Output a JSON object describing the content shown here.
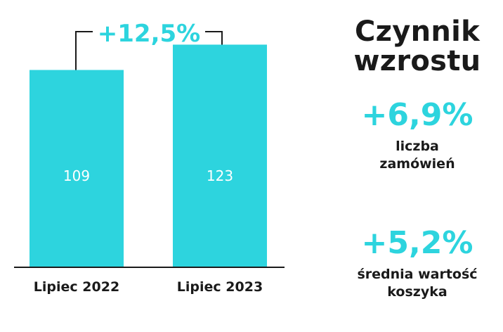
{
  "colors": {
    "bar": "#2dd4de",
    "accent": "#2dd4de",
    "text": "#1a1a1a",
    "bar_label": "#ffffff"
  },
  "chart_data": {
    "type": "bar",
    "categories": [
      "Lipiec 2022",
      "Lipiec 2023"
    ],
    "values": [
      109,
      123
    ],
    "data_labels": [
      "109",
      "123"
    ],
    "ylim": [
      0,
      136
    ],
    "grid": false,
    "bracket_annotation": "+12,5%"
  },
  "sidebar": {
    "title_line1": "Czynnik",
    "title_line2": "wzrostu",
    "metrics": [
      {
        "value": "+6,9%",
        "label_line1": "liczba",
        "label_line2": "zamówień"
      },
      {
        "value": "+5,2%",
        "label_line1": "średnia wartość",
        "label_line2": "koszyka"
      }
    ]
  }
}
